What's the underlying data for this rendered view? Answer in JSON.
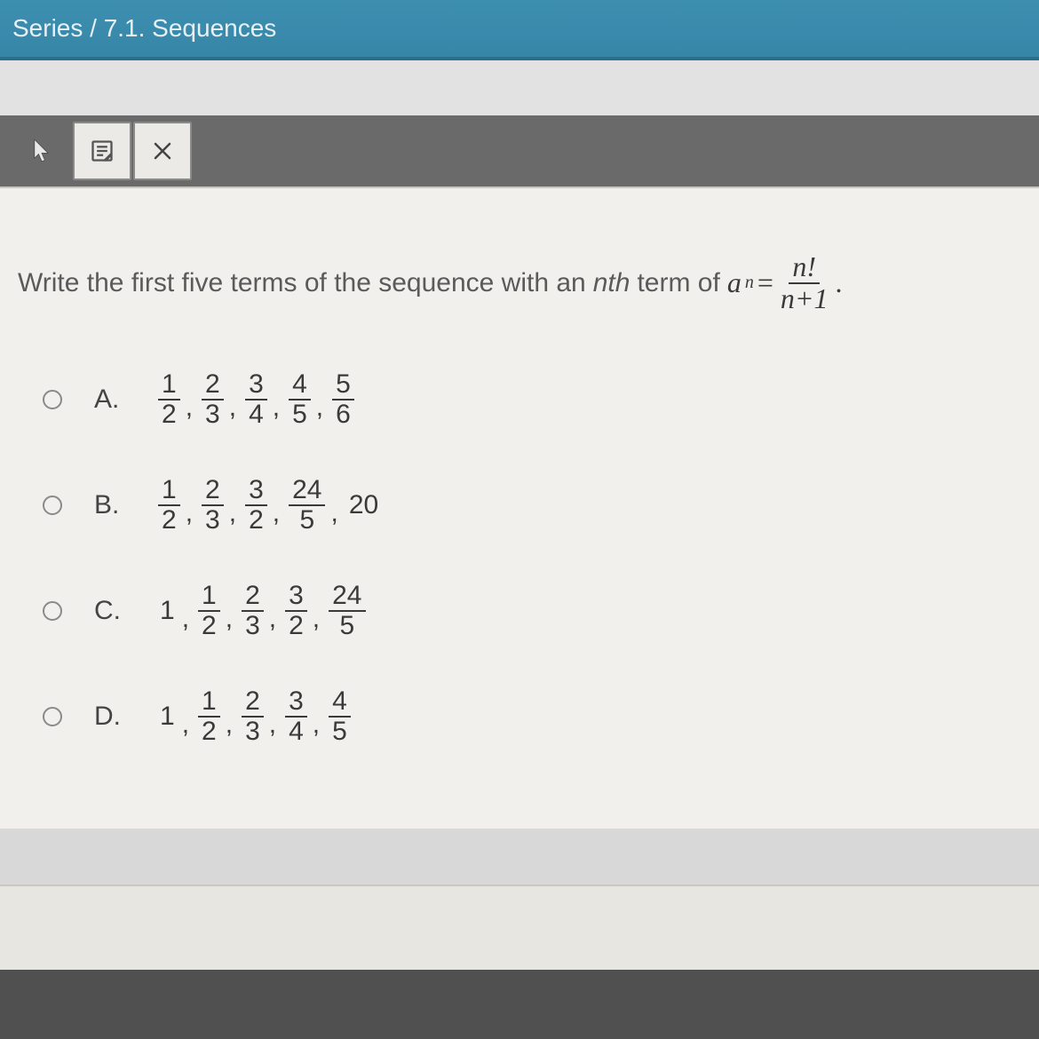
{
  "titlebar": {
    "text": "Series / 7.1. Sequences"
  },
  "toolbar": {
    "pointer_color": "#e8e8e8",
    "note_bg": "#eceae6",
    "close_bg": "#eceae6"
  },
  "question": {
    "prefix": "Write the first five terms of the sequence with an ",
    "nth": "nth",
    "middle": " term of ",
    "a": "a",
    "sub": "n",
    "eq": " = ",
    "frac_num": "n!",
    "frac_den": "n+1",
    "suffix": " ."
  },
  "options": [
    {
      "letter": "A.",
      "terms": [
        {
          "type": "frac",
          "num": "1",
          "den": "2"
        },
        {
          "type": "frac",
          "num": "2",
          "den": "3"
        },
        {
          "type": "frac",
          "num": "3",
          "den": "4"
        },
        {
          "type": "frac",
          "num": "4",
          "den": "5"
        },
        {
          "type": "frac",
          "num": "5",
          "den": "6"
        }
      ]
    },
    {
      "letter": "B.",
      "terms": [
        {
          "type": "frac",
          "num": "1",
          "den": "2"
        },
        {
          "type": "frac",
          "num": "2",
          "den": "3"
        },
        {
          "type": "frac",
          "num": "3",
          "den": "2"
        },
        {
          "type": "frac",
          "num": "24",
          "den": "5"
        },
        {
          "type": "whole",
          "val": "20"
        }
      ]
    },
    {
      "letter": "C.",
      "terms": [
        {
          "type": "whole",
          "val": "1"
        },
        {
          "type": "frac",
          "num": "1",
          "den": "2"
        },
        {
          "type": "frac",
          "num": "2",
          "den": "3"
        },
        {
          "type": "frac",
          "num": "3",
          "den": "2"
        },
        {
          "type": "frac",
          "num": "24",
          "den": "5"
        }
      ]
    },
    {
      "letter": "D.",
      "terms": [
        {
          "type": "whole",
          "val": "1"
        },
        {
          "type": "frac",
          "num": "1",
          "den": "2"
        },
        {
          "type": "frac",
          "num": "2",
          "den": "3"
        },
        {
          "type": "frac",
          "num": "3",
          "den": "4"
        },
        {
          "type": "frac",
          "num": "4",
          "den": "5"
        }
      ]
    }
  ],
  "colors": {
    "titlebar_bg": "#3686a8",
    "toolbar_bg": "#6a6a6a",
    "content_bg": "#f1f0ec",
    "text": "#3a3a3a",
    "question_text": "#5a5a5a"
  }
}
